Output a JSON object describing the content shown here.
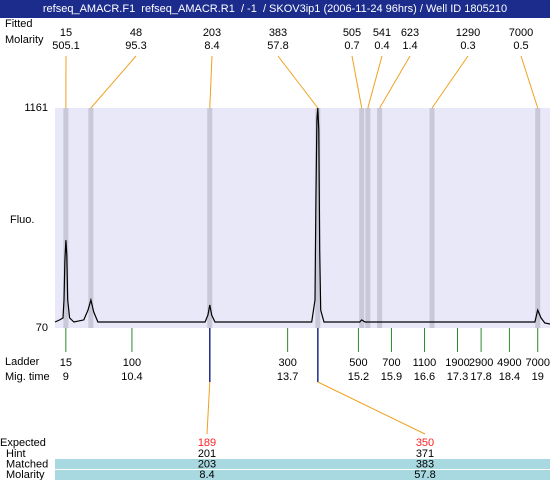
{
  "header": {
    "title": "refseq_AMACR.F1  refseq_AMACR.R1  / -1  / SKOV3ip1 (2006-11-24 96hrs) / Well ID 1805210"
  },
  "chart_data": {
    "type": "electropherogram",
    "y_label": "Fluo.",
    "ylim": [
      70,
      1161
    ],
    "yticks": [
      70,
      1161
    ],
    "xlim": [
      8.77,
      19.26
    ],
    "background": "#e8e8f8",
    "trace": {
      "color": "#000000",
      "x": [
        8.77,
        8.87,
        8.94,
        8.96,
        8.98,
        9.0,
        9.02,
        9.04,
        9.08,
        9.17,
        9.38,
        9.47,
        9.53,
        9.59,
        9.68,
        11.95,
        12.01,
        12.05,
        12.09,
        12.16,
        14.21,
        14.28,
        14.3,
        14.32,
        14.34,
        14.36,
        14.38,
        14.4,
        14.47,
        15.23,
        15.27,
        15.34,
        18.94,
        19.0,
        19.07,
        19.15,
        19.26
      ],
      "values": [
        100,
        110,
        120,
        209,
        407,
        506,
        432,
        209,
        120,
        100,
        110,
        159,
        209,
        150,
        100,
        100,
        134,
        184,
        134,
        100,
        100,
        209,
        705,
        1102,
        1161,
        1052,
        457,
        159,
        100,
        100,
        110,
        100,
        100,
        159,
        120,
        95,
        90
      ]
    },
    "peaks": {
      "row_labels": [
        "Fitted",
        "Molarity"
      ],
      "time": [
        9.0,
        9.53,
        12.05,
        14.34,
        15.27,
        15.4,
        15.65,
        16.76,
        19.0
      ],
      "size": [
        15,
        48,
        203,
        383,
        505,
        541,
        623,
        1290,
        7000
      ],
      "molarity": [
        505.1,
        95.3,
        8.4,
        57.8,
        0.7,
        0.4,
        1.4,
        0.3,
        0.5
      ],
      "band_color": "#c8c8d8",
      "line_color": "#f0a020"
    },
    "ladder": {
      "label": "Ladder",
      "time_label": "Mig. time",
      "size": [
        15,
        100,
        300,
        500,
        700,
        1100,
        1900,
        2900,
        4900,
        7000
      ],
      "time": [
        9,
        10.4,
        13.7,
        15.2,
        15.9,
        16.6,
        17.3,
        17.8,
        18.4,
        19
      ],
      "color": "#2a8a2a"
    },
    "expected": {
      "labels": [
        "Expected",
        "Hint",
        "Matched",
        "Molarity"
      ],
      "expected": [
        189,
        350
      ],
      "hint": [
        201,
        371
      ],
      "matched": [
        203,
        383
      ],
      "molarity": [
        8.4,
        57.8
      ],
      "color": "#ff2020",
      "row_color": "#a8d8e0",
      "marker_color": "#1c2c8c"
    }
  }
}
